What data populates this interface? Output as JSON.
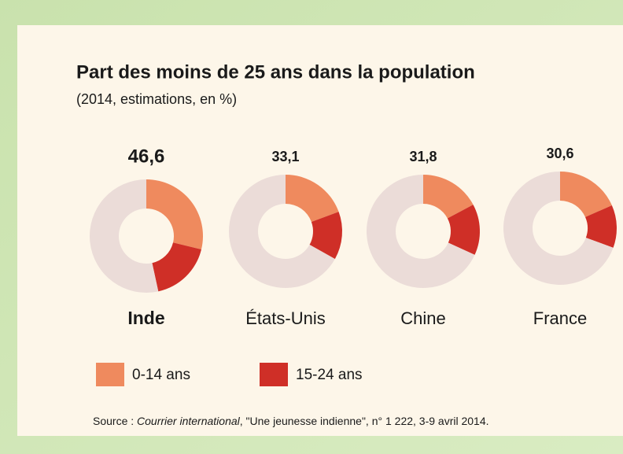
{
  "chart_data": {
    "type": "donut",
    "title": "Part des moins de 25 ans dans la population",
    "subtitle": "(2014, estimations, en %)",
    "categories": [
      "Inde",
      "États-Unis",
      "Chine",
      "France"
    ],
    "series": [
      {
        "name": "0-14 ans",
        "color": "#ef8a5e",
        "values": [
          28.8,
          19.4,
          17.2,
          18.4
        ]
      },
      {
        "name": "15-24 ans",
        "color": "#cf2f27",
        "values": [
          17.8,
          13.7,
          14.6,
          12.2
        ]
      }
    ],
    "totals": {
      "color": "#ebdcd8",
      "values": [
        46.6,
        33.1,
        31.8,
        30.6
      ],
      "value_labels": [
        "46,6",
        "33,1",
        "31,8",
        "30,6"
      ]
    },
    "source": [
      "Source : ",
      "Courrier international",
      ", \"Une jeunesse indienne\", n° 1 222, 3-9 avril 2014."
    ]
  }
}
